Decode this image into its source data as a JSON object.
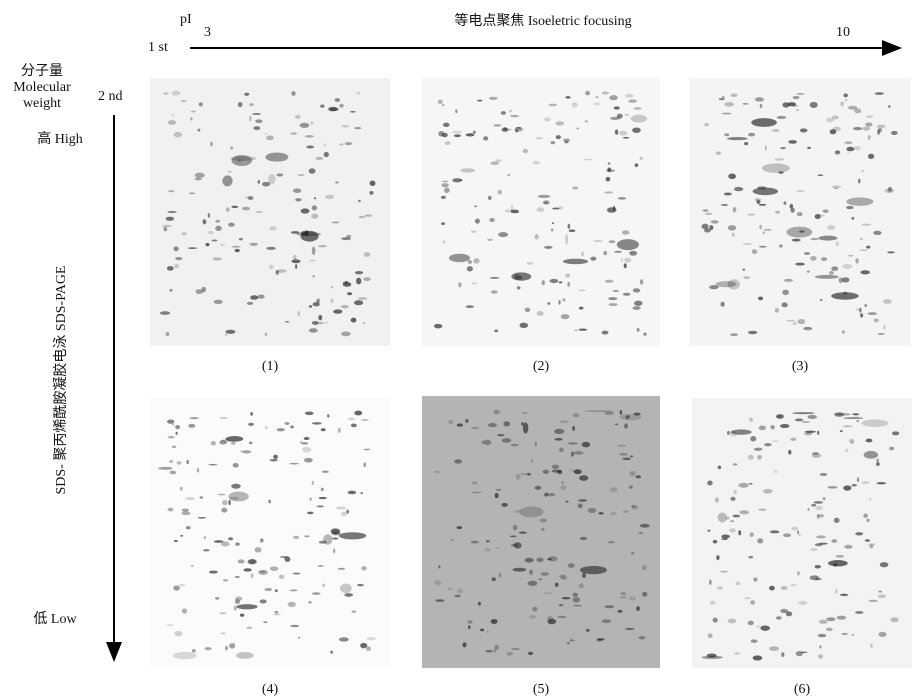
{
  "header": {
    "pi": "pI",
    "start": "3",
    "end": "10",
    "first": "1 st",
    "title": "等电点聚焦 Isoeletric focusing"
  },
  "side": {
    "mw_cn": "分子量",
    "mw_en1": "Molecular",
    "mw_en2": "weight",
    "second": "2 nd",
    "high": "高 High",
    "low": "低 Low",
    "sds": "SDS- 聚丙烯酰胺凝胶电泳 SDS-PAGE"
  },
  "panels": [
    {
      "label": "(1)"
    },
    {
      "label": "(2)"
    },
    {
      "label": "(3)"
    },
    {
      "label": "(4)"
    },
    {
      "label": "(5)"
    },
    {
      "label": "(6)"
    }
  ]
}
